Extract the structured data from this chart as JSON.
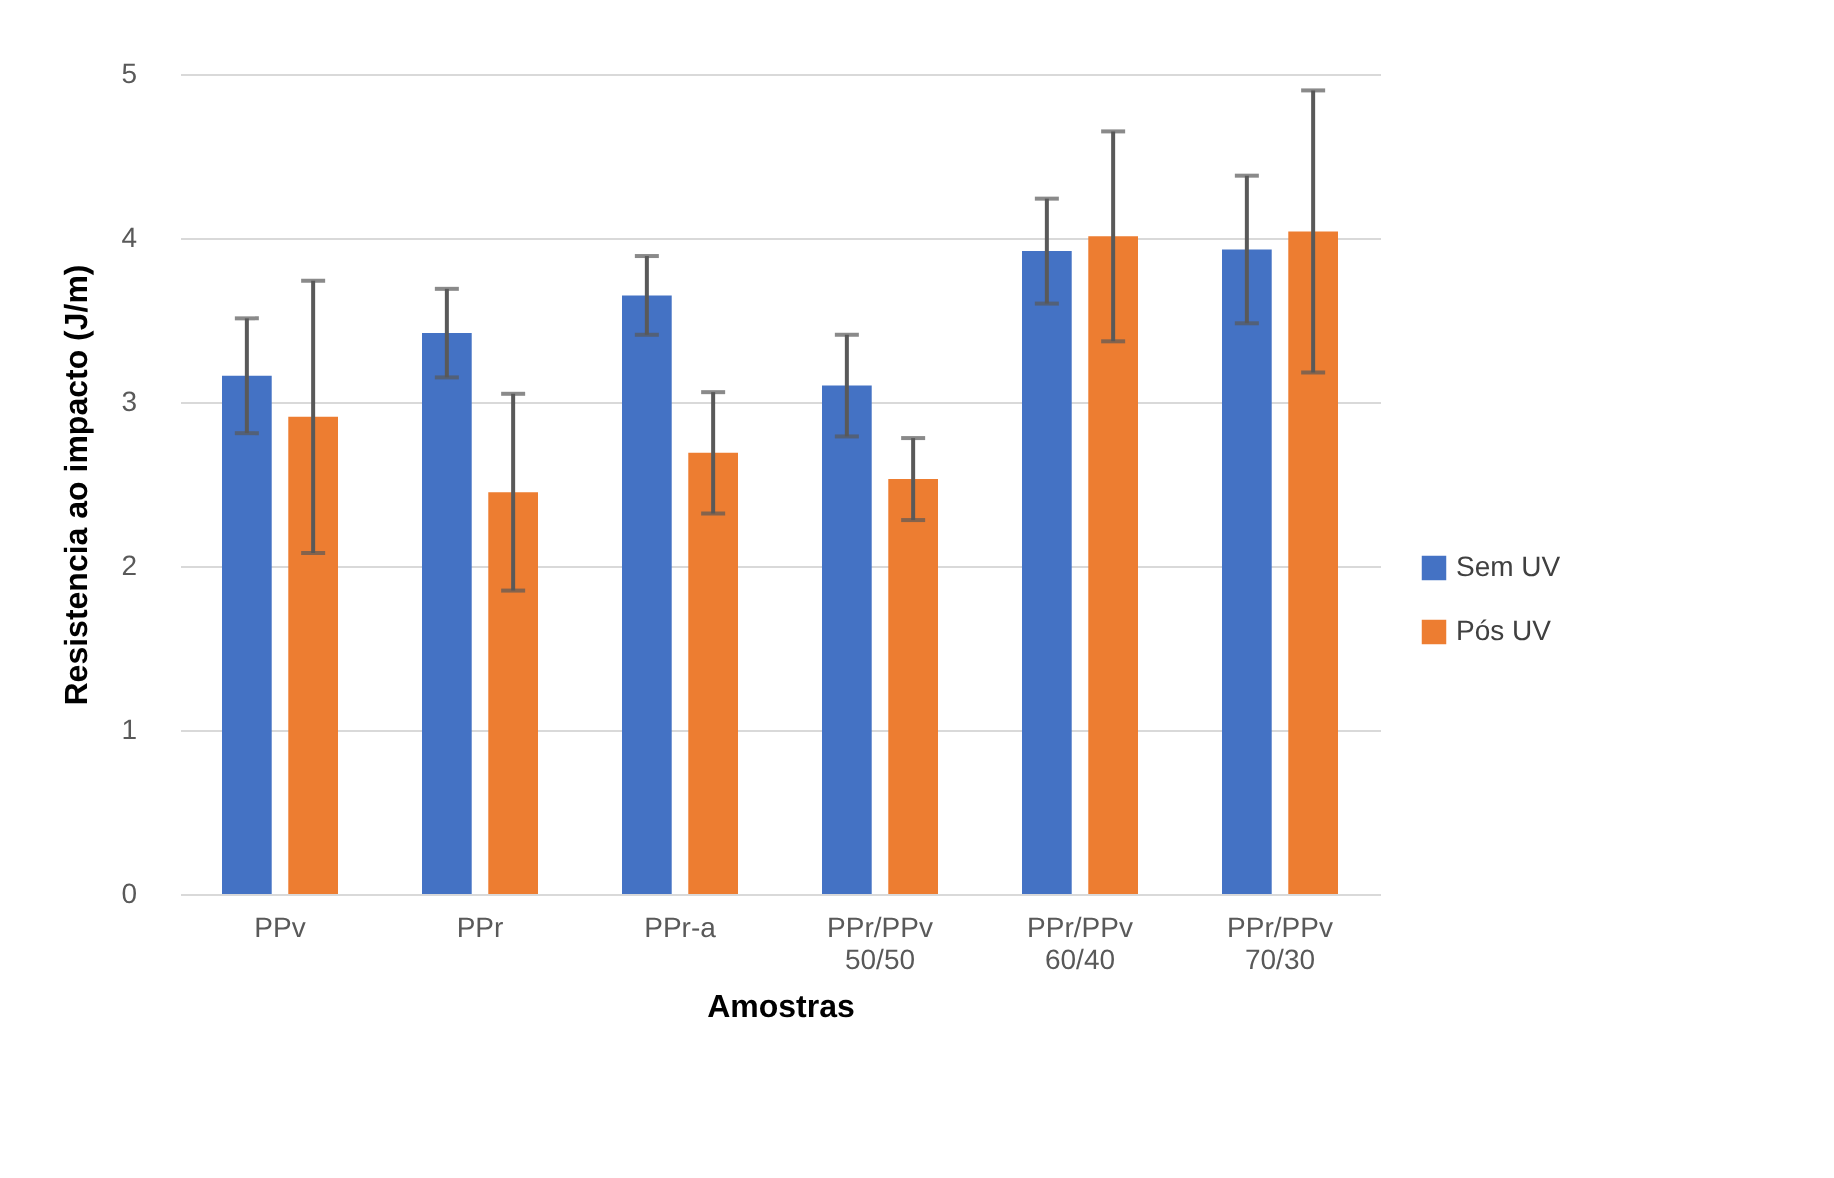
{
  "chart_data": {
    "type": "bar",
    "xlabel": "Amostras",
    "ylabel": "Resistencia ao impacto (J/m)",
    "categories": [
      "PPv",
      "PPr",
      "PPr-a",
      "PPr/PPv 50/50",
      "PPr/PPv 60/40",
      "PPr/PPv 70/30"
    ],
    "series": [
      {
        "name": "Sem UV",
        "color": "#4472c4",
        "values": [
          3.16,
          3.42,
          3.65,
          3.1,
          3.92,
          3.93
        ],
        "errors": [
          0.35,
          0.27,
          0.24,
          0.31,
          0.32,
          0.45
        ]
      },
      {
        "name": "Pós UV",
        "color": "#ed7d31",
        "values": [
          2.91,
          2.45,
          2.69,
          2.53,
          4.01,
          4.04
        ],
        "errors": [
          0.83,
          0.6,
          0.37,
          0.25,
          0.64,
          0.86
        ]
      }
    ],
    "ylim": [
      0,
      5
    ],
    "yticks": [
      0,
      1,
      2,
      3,
      4,
      5
    ],
    "grid": "y",
    "legend": "right"
  }
}
